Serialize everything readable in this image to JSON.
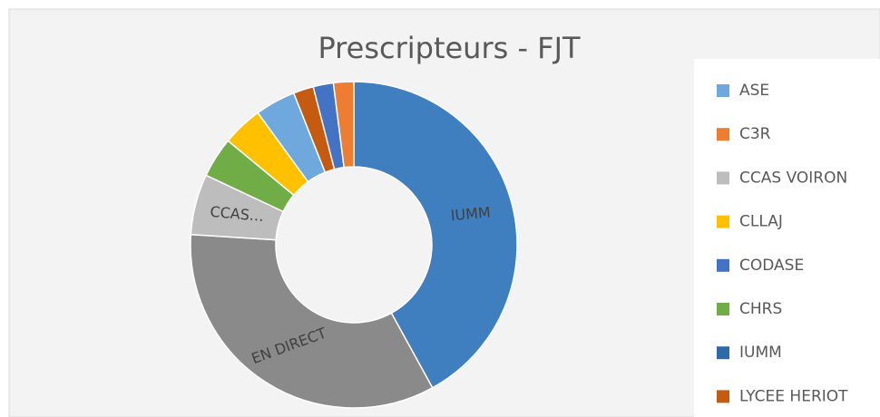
{
  "chart_data": {
    "type": "donut",
    "title": "Prescripteurs - FJT",
    "slices": [
      {
        "name": "IUMM",
        "label": "IUMM",
        "color": "#3f7fbf",
        "value": 42
      },
      {
        "name": "EN DIRECT",
        "label": "EN DIRECT",
        "color": "#8a8a8a",
        "value": 34
      },
      {
        "name": "CCAS VOIRON",
        "label": "CCAS…",
        "color": "#bdbdbd",
        "value": 6
      },
      {
        "name": "CHRS",
        "color": "#70ad47",
        "value": 4
      },
      {
        "name": "CLLAJ",
        "color": "#ffc000",
        "value": 4
      },
      {
        "name": "ASE",
        "color": "#6fa8dc",
        "value": 4
      },
      {
        "name": "LYCEE HERIOT",
        "color": "#c55a11",
        "value": 2
      },
      {
        "name": "CODASE",
        "color": "#4472c4",
        "value": 2
      },
      {
        "name": "C3R",
        "color": "#ed7d31",
        "value": 2
      }
    ],
    "legend": [
      {
        "name": "ASE",
        "color": "#6fa8dc"
      },
      {
        "name": "C3R",
        "color": "#ed7d31"
      },
      {
        "name": "CCAS VOIRON",
        "color": "#bdbdbd"
      },
      {
        "name": "CLLAJ",
        "color": "#ffc000"
      },
      {
        "name": "CODASE",
        "color": "#4472c4"
      },
      {
        "name": "CHRS",
        "color": "#70ad47"
      },
      {
        "name": "IUMM",
        "color": "#2e6aa8"
      },
      {
        "name": "LYCEE HERIOT",
        "color": "#c55a11"
      }
    ]
  }
}
